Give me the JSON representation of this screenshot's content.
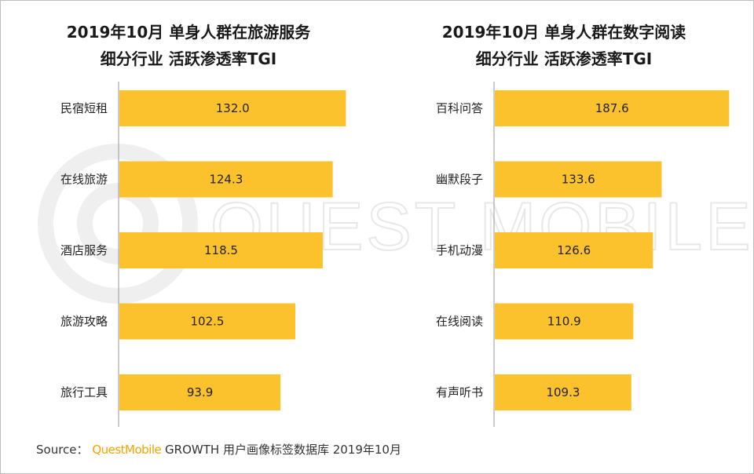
{
  "chart_data": [
    {
      "type": "bar",
      "orientation": "horizontal",
      "title_lines": [
        "2019年10月 单身人群在旅游服务",
        "细分行业 活跃渗透率TGI"
      ],
      "categories": [
        "民宿短租",
        "在线旅游",
        "酒店服务",
        "旅游攻略",
        "旅行工具"
      ],
      "values": [
        132.0,
        124.3,
        118.5,
        102.5,
        93.9
      ],
      "value_labels": [
        "132.0",
        "124.3",
        "118.5",
        "102.5",
        "93.9"
      ],
      "xlim": [
        0,
        135
      ],
      "bar_color": "#fcc22d"
    },
    {
      "type": "bar",
      "orientation": "horizontal",
      "title_lines": [
        "2019年10月 单身人群在数字阅读",
        "细分行业 活跃渗透率TGI"
      ],
      "categories": [
        "百科问答",
        "幽默段子",
        "手机动漫",
        "在线阅读",
        "有声听书"
      ],
      "values": [
        187.6,
        133.6,
        126.6,
        110.9,
        109.3
      ],
      "value_labels": [
        "187.6",
        "133.6",
        "126.6",
        "110.9",
        "109.3"
      ],
      "xlim": [
        0,
        188
      ],
      "bar_color": "#fcc22d"
    }
  ],
  "watermark": {
    "text": "QUEST MOBILE",
    "color": "#ececec"
  },
  "source": {
    "prefix": "Source：",
    "brand": "QuestMobile",
    "rest": "GROWTH 用户画像标签数据库 2019年10月",
    "brand_color": "#f5a300"
  }
}
